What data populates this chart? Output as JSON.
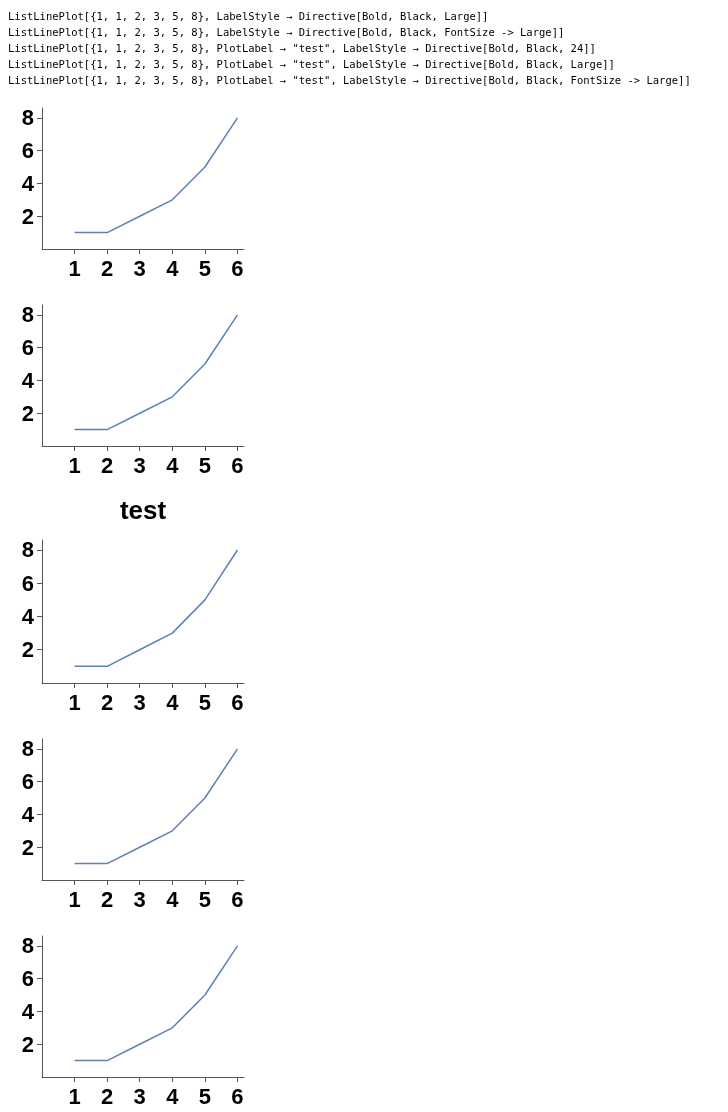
{
  "chart_data": [
    {
      "type": "line",
      "annotations": [
        "ListLinePlot[{1, 1, 2, 3, 5, 8}, LabelStyle → Directive[Bold, Black, Large]]",
        "ListLinePlot[{1, 1, 2, 3, 5, 8}, LabelStyle → Directive[Bold, Black, FontSize -> Large]]",
        "ListLinePlot[{1, 1, 2, 3, 5, 8}, PlotLabel → \"test\", LabelStyle → Directive[Bold, Black, 24]]",
        "ListLinePlot[{1, 1, 2, 3, 5, 8}, PlotLabel → \"test\", LabelStyle → Directive[Bold, Black, Large]]",
        "ListLinePlot[{1, 1, 2, 3, 5, 8}, PlotLabel → \"test\", LabelStyle → Directive[Bold, Black, FontSize -> Large]]"
      ],
      "x": [
        1,
        2,
        3,
        4,
        5,
        6
      ],
      "values": [
        1,
        1,
        2,
        3,
        5,
        8
      ],
      "color": "#5e81b5",
      "xlim": [
        0,
        6.2
      ],
      "ylim": [
        0,
        8.6
      ],
      "xticks": [
        1,
        2,
        3,
        4,
        5,
        6
      ],
      "yticks": [
        2,
        4,
        6,
        8
      ],
      "grid": false,
      "marker": "none"
    },
    {
      "type": "line",
      "x": [
        1,
        2,
        3,
        4,
        5,
        6
      ],
      "values": [
        1,
        1,
        2,
        3,
        5,
        8
      ],
      "color": "#5e81b5",
      "xlim": [
        0,
        6.2
      ],
      "ylim": [
        0,
        8.6
      ],
      "xticks": [
        1,
        2,
        3,
        4,
        5,
        6
      ],
      "yticks": [
        2,
        4,
        6,
        8
      ],
      "grid": false,
      "marker": "none"
    },
    {
      "type": "line",
      "title": "test",
      "x": [
        1,
        2,
        3,
        4,
        5,
        6
      ],
      "values": [
        1,
        1,
        2,
        3,
        5,
        8
      ],
      "color": "#5e81b5",
      "xlim": [
        0,
        6.2
      ],
      "ylim": [
        0,
        8.6
      ],
      "xticks": [
        1,
        2,
        3,
        4,
        5,
        6
      ],
      "yticks": [
        2,
        4,
        6,
        8
      ],
      "grid": false,
      "marker": "none"
    },
    {
      "type": "line",
      "x": [
        1,
        2,
        3,
        4,
        5,
        6
      ],
      "values": [
        1,
        1,
        2,
        3,
        5,
        8
      ],
      "color": "#5e81b5",
      "xlim": [
        0,
        6.2
      ],
      "ylim": [
        0,
        8.6
      ],
      "xticks": [
        1,
        2,
        3,
        4,
        5,
        6
      ],
      "yticks": [
        2,
        4,
        6,
        8
      ],
      "grid": false,
      "marker": "none"
    },
    {
      "type": "line",
      "x": [
        1,
        2,
        3,
        4,
        5,
        6
      ],
      "values": [
        1,
        1,
        2,
        3,
        5,
        8
      ],
      "color": "#5e81b5",
      "xlim": [
        0,
        6.2
      ],
      "ylim": [
        0,
        8.6
      ],
      "xticks": [
        1,
        2,
        3,
        4,
        5,
        6
      ],
      "yticks": [
        2,
        4,
        6,
        8
      ],
      "grid": false,
      "marker": "none"
    }
  ]
}
